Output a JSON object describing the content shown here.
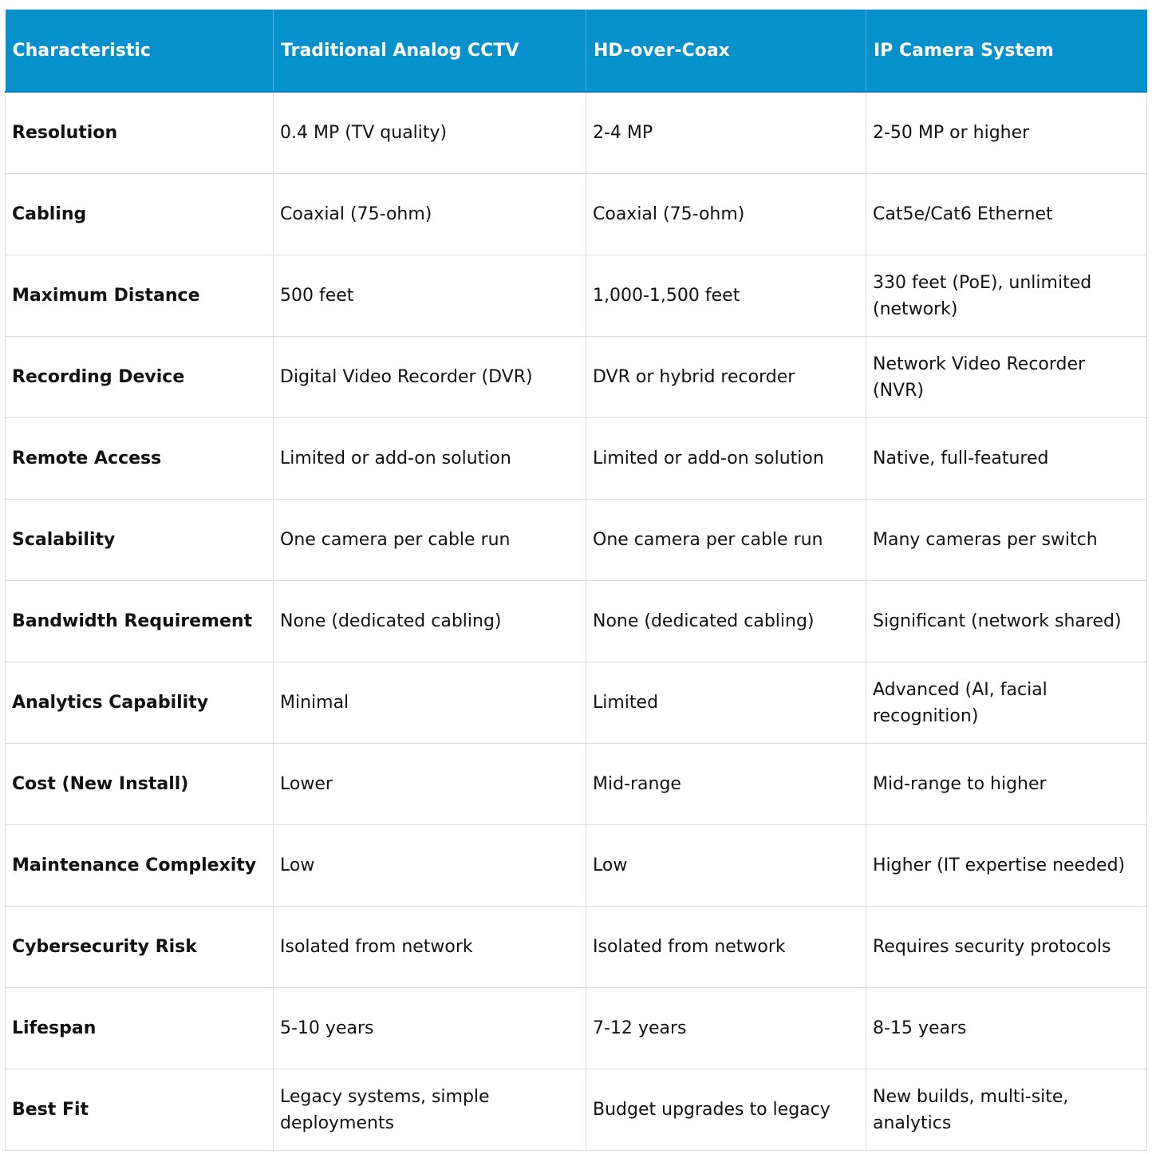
{
  "header": {
    "col0": "Characteristic",
    "col1": "Traditional Analog CCTV",
    "col2": "HD-over-Coax",
    "col3": "IP Camera System"
  },
  "rows": [
    [
      "Resolution",
      "0.4 MP (TV quality)",
      "2-4 MP",
      "2-50 MP or higher"
    ],
    [
      "Cabling",
      "Coaxial (75-ohm)",
      "Coaxial (75-ohm)",
      "Cat5e/Cat6 Ethernet"
    ],
    [
      "Maximum Distance",
      "500 feet",
      "1,000-1,500 feet",
      "330 feet (PoE), unlimited (network)"
    ],
    [
      "Recording Device",
      "Digital Video Recorder (DVR)",
      "DVR or hybrid recorder",
      "Network Video Recorder (NVR)"
    ],
    [
      "Remote Access",
      "Limited or add-on solution",
      "Limited or add-on solution",
      "Native, full-featured"
    ],
    [
      "Scalability",
      "One camera per cable run",
      "One camera per cable run",
      "Many cameras per switch"
    ],
    [
      "Bandwidth Requirement",
      "None (dedicated cabling)",
      "None (dedicated cabling)",
      "Significant (network shared)"
    ],
    [
      "Analytics Capability",
      "Minimal",
      "Limited",
      "Advanced (AI, facial recognition)"
    ],
    [
      "Cost (New Install)",
      "Lower",
      "Mid-range",
      "Mid-range to higher"
    ],
    [
      "Maintenance Complexity",
      "Low",
      "Low",
      "Higher (IT expertise needed)"
    ],
    [
      "Cybersecurity Risk",
      "Isolated from network",
      "Isolated from network",
      "Requires security protocols"
    ],
    [
      "Lifespan",
      "5-10 years",
      "7-12 years",
      "8-15 years"
    ],
    [
      "Best Fit",
      "Legacy systems, simple deployments",
      "Budget upgrades to legacy",
      "New builds, multi-site, analytics"
    ]
  ],
  "colors": {
    "header_bg": "#0690cc",
    "header_text": "#ffffff",
    "grid": "#dcdcdc"
  }
}
